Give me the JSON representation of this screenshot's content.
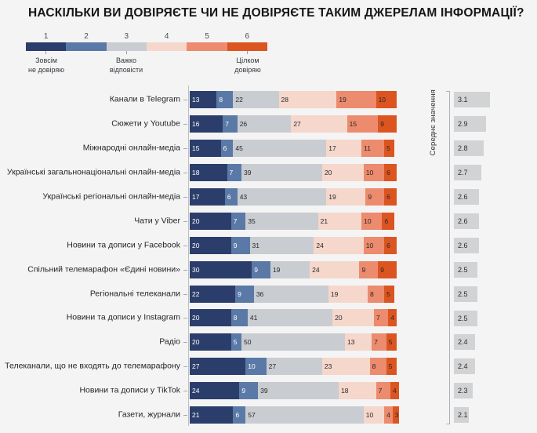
{
  "title": "НАСКІЛЬКИ ВИ ДОВІРЯЄТЕ ЧИ НЕ ДОВІРЯЄТЕ ТАКИМ ДЖЕРЕЛАМ ІНФОРМАЦІЇ?",
  "mean_axis_label": "Середнє значення",
  "legend": {
    "scale": [
      "1",
      "2",
      "3",
      "4",
      "5",
      "6"
    ],
    "colors": [
      "#2b3e6b",
      "#5a79a6",
      "#c9ccd0",
      "#f6d7cb",
      "#ec8b6e",
      "#dc5520"
    ],
    "anchors": [
      {
        "at": "1",
        "lines": "Зовсім\nне довіряю"
      },
      {
        "at": "3",
        "lines": "Важко\nвідповісти"
      },
      {
        "at": "6",
        "lines": "Цілком\nдовіряю"
      }
    ]
  },
  "chart_data": {
    "type": "bar",
    "orientation": "horizontal",
    "stacked": true,
    "title": "НАСКІЛЬКИ ВИ ДОВІРЯЄТЕ ЧИ НЕ ДОВІРЯЄТЕ ТАКИМ ДЖЕРЕЛАМ ІНФОРМАЦІЇ?",
    "scale_note": "1 = зовсім не довіряю, 3 = важко відповісти, 6 = цілком довіряю; values are percentages",
    "categories": [
      "Канали в Telegram",
      "Сюжети у Youtube",
      "Міжнародні онлайн-медіа",
      "Українські загальнонаціональні онлайн-медіа",
      "Українські регіональні онлайн-медіа",
      "Чати у Viber",
      "Новини та дописи у Facebook",
      "Спільний телемарафон «Єдині новини»",
      "Регіональні телеканали",
      "Новини та дописи у Instagram",
      "Радіо",
      "Телеканали, що не входять до телемарафону",
      "Новини та дописи у TikTok",
      "Газети, журнали"
    ],
    "series": [
      {
        "name": "1",
        "color": "#2b3e6b",
        "values": [
          13,
          16,
          15,
          18,
          17,
          20,
          20,
          30,
          22,
          20,
          20,
          27,
          24,
          21
        ]
      },
      {
        "name": "2",
        "color": "#5a79a6",
        "values": [
          8,
          7,
          6,
          7,
          6,
          7,
          9,
          9,
          9,
          8,
          5,
          10,
          9,
          6
        ]
      },
      {
        "name": "3",
        "color": "#c9ccd0",
        "values": [
          22,
          26,
          45,
          39,
          43,
          35,
          31,
          19,
          36,
          41,
          50,
          27,
          39,
          57
        ]
      },
      {
        "name": "4",
        "color": "#f6d7cb",
        "values": [
          28,
          27,
          17,
          20,
          19,
          21,
          24,
          24,
          19,
          20,
          13,
          23,
          18,
          10
        ]
      },
      {
        "name": "5",
        "color": "#ec8b6e",
        "values": [
          19,
          15,
          11,
          10,
          9,
          10,
          10,
          9,
          8,
          7,
          7,
          8,
          7,
          4
        ]
      },
      {
        "name": "6",
        "color": "#dc5520",
        "values": [
          10,
          9,
          5,
          6,
          6,
          6,
          6,
          9,
          5,
          4,
          5,
          5,
          4,
          3
        ]
      }
    ],
    "means": [
      3.1,
      2.9,
      2.8,
      2.7,
      2.6,
      2.6,
      2.6,
      2.5,
      2.5,
      2.5,
      2.4,
      2.4,
      2.3,
      2.1
    ],
    "means_label": "Середнє значення",
    "xlim": [
      0,
      100
    ]
  }
}
